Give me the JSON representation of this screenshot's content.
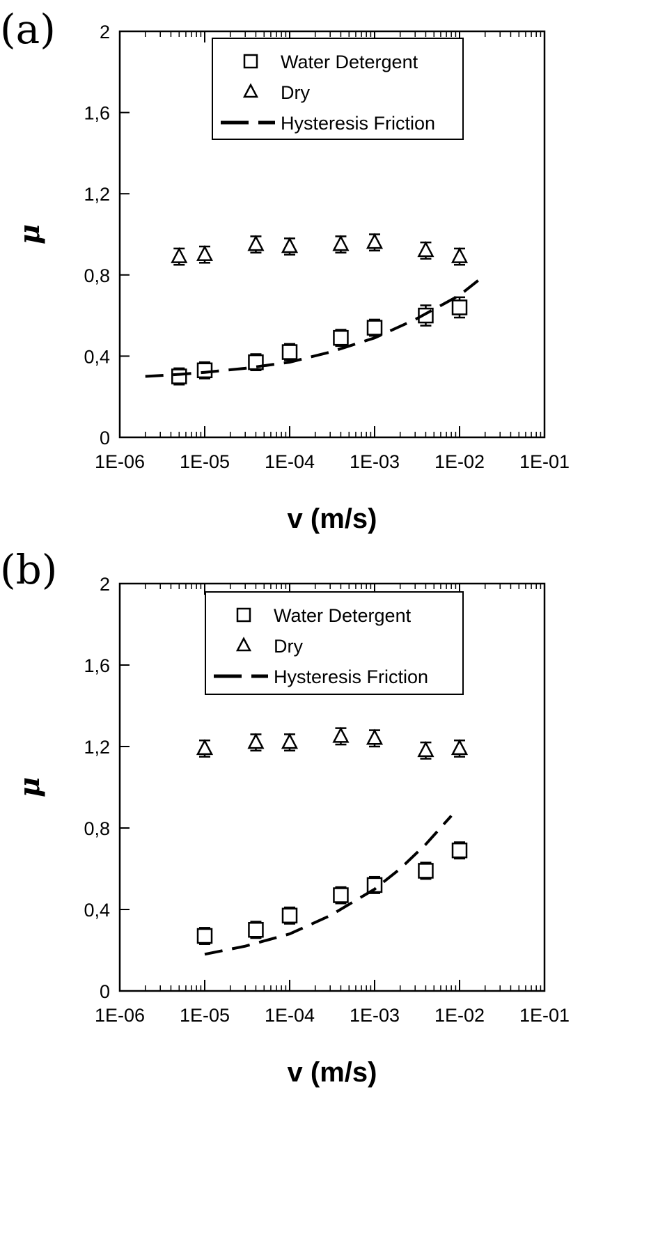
{
  "chart_data": [
    {
      "type": "scatter",
      "panel_label": "(a)",
      "xlabel": "v (m/s)",
      "ylabel": "μ",
      "x_scale": "log",
      "xlim": [
        1e-06,
        0.1
      ],
      "ylim": [
        0,
        2
      ],
      "x_tick_values": [
        1e-06,
        1e-05,
        0.0001,
        0.001,
        0.01,
        0.1
      ],
      "x_tick_labels": [
        "1E-06",
        "1E-05",
        "1E-04",
        "1E-03",
        "1E-02",
        "1E-01"
      ],
      "y_tick_values": [
        0,
        0.4,
        0.8,
        1.2,
        1.6,
        2
      ],
      "y_tick_labels": [
        "0",
        "0,4",
        "0,8",
        "1,2",
        "1,6",
        "2"
      ],
      "grid": false,
      "legend_position": "top-center",
      "series": [
        {
          "name": "Water Detergent",
          "marker": "square",
          "x": [
            5e-06,
            1e-05,
            4e-05,
            0.0001,
            0.0004,
            0.001,
            0.004,
            0.01
          ],
          "y": [
            0.3,
            0.33,
            0.37,
            0.42,
            0.49,
            0.54,
            0.6,
            0.64
          ],
          "err": [
            0.04,
            0.04,
            0.04,
            0.04,
            0.04,
            0.04,
            0.05,
            0.05
          ]
        },
        {
          "name": "Dry",
          "marker": "triangle",
          "x": [
            5e-06,
            1e-05,
            4e-05,
            0.0001,
            0.0004,
            0.001,
            0.004,
            0.01
          ],
          "y": [
            0.89,
            0.9,
            0.95,
            0.94,
            0.95,
            0.96,
            0.92,
            0.89
          ],
          "err": [
            0.04,
            0.04,
            0.04,
            0.04,
            0.04,
            0.04,
            0.04,
            0.04
          ]
        },
        {
          "name": "Hysteresis Friction",
          "line": "dashed",
          "x": [
            2e-06,
            5e-06,
            1e-05,
            3e-05,
            0.0001,
            0.0003,
            0.001,
            0.003,
            0.01,
            0.02
          ],
          "y": [
            0.3,
            0.31,
            0.32,
            0.34,
            0.37,
            0.42,
            0.49,
            0.58,
            0.7,
            0.8
          ]
        }
      ]
    },
    {
      "type": "scatter",
      "panel_label": "(b)",
      "xlabel": "v (m/s)",
      "ylabel": "μ",
      "x_scale": "log",
      "xlim": [
        1e-06,
        0.1
      ],
      "ylim": [
        0,
        2
      ],
      "x_tick_values": [
        1e-06,
        1e-05,
        0.0001,
        0.001,
        0.01,
        0.1
      ],
      "x_tick_labels": [
        "1E-06",
        "1E-05",
        "1E-04",
        "1E-03",
        "1E-02",
        "1E-01"
      ],
      "y_tick_values": [
        0,
        0.4,
        0.8,
        1.2,
        1.6,
        2
      ],
      "y_tick_labels": [
        "0",
        "0,4",
        "0,8",
        "1,2",
        "1,6",
        "2"
      ],
      "grid": false,
      "legend_position": "top-center",
      "series": [
        {
          "name": "Water Detergent",
          "marker": "square",
          "x": [
            1e-05,
            4e-05,
            0.0001,
            0.0004,
            0.001,
            0.004,
            0.01
          ],
          "y": [
            0.27,
            0.3,
            0.37,
            0.47,
            0.52,
            0.59,
            0.69
          ],
          "err": [
            0.04,
            0.04,
            0.04,
            0.04,
            0.04,
            0.04,
            0.04
          ]
        },
        {
          "name": "Dry",
          "marker": "triangle",
          "x": [
            1e-05,
            4e-05,
            0.0001,
            0.0004,
            0.001,
            0.004,
            0.01
          ],
          "y": [
            1.19,
            1.22,
            1.22,
            1.25,
            1.24,
            1.18,
            1.19
          ],
          "err": [
            0.04,
            0.04,
            0.04,
            0.04,
            0.04,
            0.04,
            0.04
          ]
        },
        {
          "name": "Hysteresis Friction",
          "line": "dashed",
          "x": [
            1e-05,
            3e-05,
            0.0001,
            0.0003,
            0.001,
            0.002,
            0.004,
            0.008
          ],
          "y": [
            0.18,
            0.22,
            0.28,
            0.37,
            0.5,
            0.6,
            0.72,
            0.86
          ]
        }
      ]
    }
  ]
}
